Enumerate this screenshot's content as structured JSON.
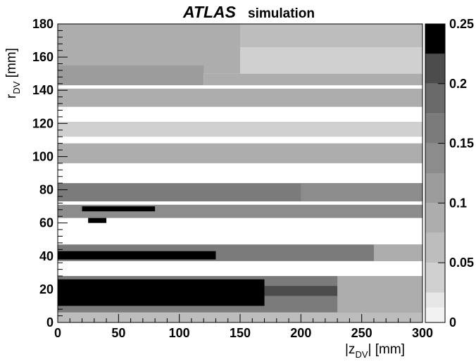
{
  "title": {
    "main": "ATLAS",
    "sub": "simulation"
  },
  "chart_data": {
    "type": "heatmap",
    "x_axis": {
      "label": "|z",
      "sub": "DV",
      "unit": "| [mm]",
      "range": [
        0,
        300
      ],
      "ticks": [
        0,
        50,
        100,
        150,
        200,
        250,
        300
      ]
    },
    "y_axis": {
      "label": "r",
      "sub": "DV",
      "unit": " [mm]",
      "range": [
        0,
        180
      ],
      "ticks": [
        0,
        20,
        40,
        60,
        80,
        100,
        120,
        140,
        160,
        180
      ]
    },
    "z_axis": {
      "range": [
        0,
        0.25
      ],
      "tick_labels": [
        "0",
        "0.05",
        "0.1",
        "0.15",
        "0.2",
        "0.25"
      ],
      "tick_values": [
        0,
        0.05,
        0.1,
        0.15,
        0.2,
        0.25
      ]
    },
    "palette_levels": [
      {
        "lo": 0.0,
        "hi": 0.0125,
        "color": "#f2f2f2"
      },
      {
        "lo": 0.0125,
        "hi": 0.025,
        "color": "#e6e6e6"
      },
      {
        "lo": 0.025,
        "hi": 0.05,
        "color": "#d0d0d0"
      },
      {
        "lo": 0.05,
        "hi": 0.075,
        "color": "#bdbdbd"
      },
      {
        "lo": 0.075,
        "hi": 0.1,
        "color": "#adadad"
      },
      {
        "lo": 0.1,
        "hi": 0.125,
        "color": "#9c9c9c"
      },
      {
        "lo": 0.125,
        "hi": 0.15,
        "color": "#8c8c8c"
      },
      {
        "lo": 0.15,
        "hi": 0.175,
        "color": "#7b7b7b"
      },
      {
        "lo": 0.175,
        "hi": 0.2,
        "color": "#6a6a6a"
      },
      {
        "lo": 0.2,
        "hi": 0.225,
        "color": "#4c4c4c"
      },
      {
        "lo": 0.225,
        "hi": 0.25,
        "color": "#000000"
      }
    ],
    "regions": [
      {
        "x": [
          0,
          300
        ],
        "y": [
          166,
          180
        ],
        "v": 0.06
      },
      {
        "x": [
          0,
          150
        ],
        "y": [
          166,
          180
        ],
        "v": 0.08
      },
      {
        "x": [
          150,
          300
        ],
        "y": [
          150,
          166
        ],
        "v": 0.05
      },
      {
        "x": [
          0,
          150
        ],
        "y": [
          150,
          166
        ],
        "v": 0.09
      },
      {
        "x": [
          0,
          120
        ],
        "y": [
          143,
          155
        ],
        "v": 0.12
      },
      {
        "x": [
          120,
          300
        ],
        "y": [
          143,
          150
        ],
        "v": 0.08
      },
      {
        "x": [
          0,
          300
        ],
        "y": [
          130,
          141
        ],
        "v": 0.1
      },
      {
        "x": [
          0,
          300
        ],
        "y": [
          112,
          121
        ],
        "v": 0.04
      },
      {
        "x": [
          0,
          300
        ],
        "y": [
          96,
          108
        ],
        "v": 0.1
      },
      {
        "x": [
          0,
          300
        ],
        "y": [
          73,
          84
        ],
        "v": 0.16
      },
      {
        "x": [
          200,
          300
        ],
        "y": [
          73,
          84
        ],
        "v": 0.13
      },
      {
        "x": [
          0,
          300
        ],
        "y": [
          63,
          71
        ],
        "v": 0.15
      },
      {
        "x": [
          20,
          80
        ],
        "y": [
          67,
          70
        ],
        "v": 0.24
      },
      {
        "x": [
          25,
          40
        ],
        "y": [
          60,
          63
        ],
        "v": 0.24
      },
      {
        "x": [
          0,
          300
        ],
        "y": [
          37,
          47
        ],
        "v": 0.16
      },
      {
        "x": [
          0,
          130
        ],
        "y": [
          38,
          43
        ],
        "v": 0.23
      },
      {
        "x": [
          260,
          300
        ],
        "y": [
          37,
          47
        ],
        "v": 0.08
      },
      {
        "x": [
          0,
          300
        ],
        "y": [
          6,
          28
        ],
        "v": 0.17
      },
      {
        "x": [
          0,
          170
        ],
        "y": [
          10,
          26
        ],
        "v": 0.24
      },
      {
        "x": [
          170,
          230
        ],
        "y": [
          16,
          22
        ],
        "v": 0.22
      },
      {
        "x": [
          230,
          300
        ],
        "y": [
          6,
          28
        ],
        "v": 0.1
      },
      {
        "x": [
          0,
          300
        ],
        "y": [
          0,
          6
        ],
        "v": 0.07
      }
    ]
  }
}
